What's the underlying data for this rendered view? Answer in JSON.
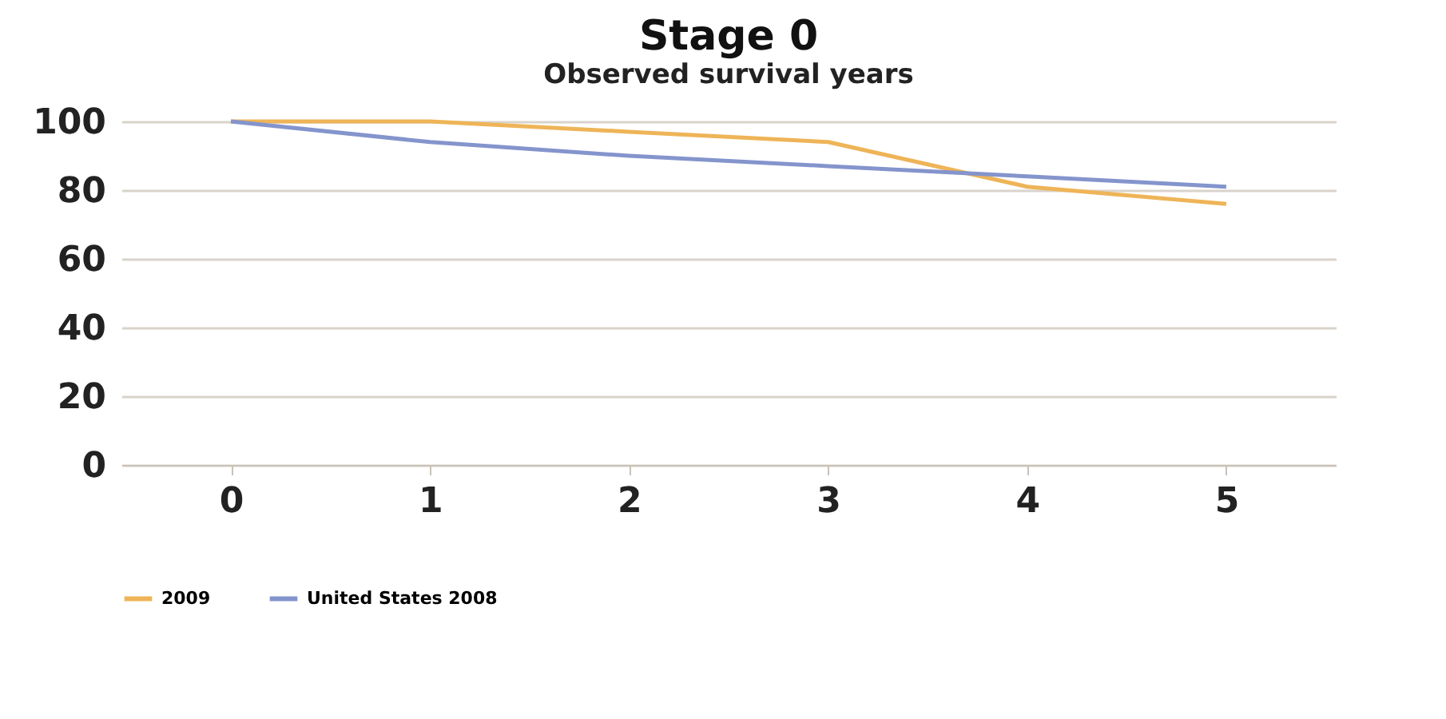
{
  "chart_data": {
    "type": "line",
    "title": "Stage 0",
    "subtitle": "Observed survival years",
    "categories": [
      "0",
      "1",
      "2",
      "3",
      "4",
      "5"
    ],
    "series": [
      {
        "name": "2009",
        "color": "#eeb457",
        "values": [
          100,
          100,
          97,
          94,
          81,
          76
        ]
      },
      {
        "name": "United States 2008",
        "color": "#8494cc",
        "values": [
          100,
          94,
          90,
          87,
          84,
          81
        ]
      }
    ],
    "ylim": [
      0,
      100
    ],
    "yticks": [
      0,
      20,
      40,
      60,
      80,
      100
    ],
    "grid": "y",
    "legend": "bottom",
    "marker": "none",
    "line_style": "solid"
  }
}
